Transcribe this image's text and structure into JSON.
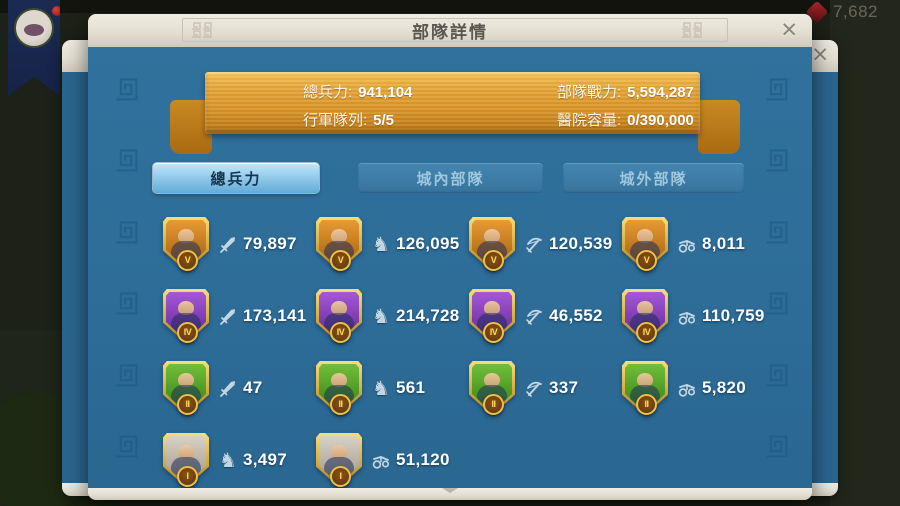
{
  "hud": {
    "gem_count": "7,682"
  },
  "back_dialog": {
    "close_label": "✕"
  },
  "dialog": {
    "title": "部隊詳情",
    "close_label": "✕"
  },
  "summary": {
    "items": [
      {
        "label": "總兵力:",
        "value": "941,104"
      },
      {
        "label": "部隊戰力:",
        "value": "5,594,287"
      },
      {
        "label": "行軍隊列:",
        "value": "5/5"
      },
      {
        "label": "醫院容量:",
        "value": "0/390,000"
      }
    ]
  },
  "tabs": [
    {
      "label": "總兵力",
      "active": true
    },
    {
      "label": "城內部隊",
      "active": false
    },
    {
      "label": "城外部隊",
      "active": false
    }
  ],
  "troops": [
    {
      "tier": "V",
      "type": "infantry",
      "icon": "sword-icon",
      "count": "79,897"
    },
    {
      "tier": "V",
      "type": "cavalry",
      "icon": "horse-icon",
      "count": "126,095"
    },
    {
      "tier": "V",
      "type": "archer",
      "icon": "crossbow-icon",
      "count": "120,539"
    },
    {
      "tier": "V",
      "type": "siege",
      "icon": "siege-icon",
      "count": "8,011"
    },
    {
      "tier": "IV",
      "type": "infantry",
      "icon": "sword-icon",
      "count": "173,141"
    },
    {
      "tier": "IV",
      "type": "cavalry",
      "icon": "horse-icon",
      "count": "214,728"
    },
    {
      "tier": "IV",
      "type": "archer",
      "icon": "crossbow-icon",
      "count": "46,552"
    },
    {
      "tier": "IV",
      "type": "siege",
      "icon": "siege-icon",
      "count": "110,759"
    },
    {
      "tier": "II",
      "type": "infantry",
      "icon": "sword-icon",
      "count": "47"
    },
    {
      "tier": "II",
      "type": "cavalry",
      "icon": "horse-icon",
      "count": "561"
    },
    {
      "tier": "II",
      "type": "archer",
      "icon": "crossbow-icon",
      "count": "337"
    },
    {
      "tier": "II",
      "type": "siege",
      "icon": "siege-icon",
      "count": "5,820"
    },
    {
      "tier": "I",
      "type": "cavalry",
      "icon": "horse-icon",
      "count": "3,497"
    },
    {
      "tier": "I",
      "type": "siege",
      "icon": "siege-icon",
      "count": "51,120"
    }
  ],
  "tier_colors": {
    "V": {
      "top": "#e89a33",
      "bottom": "#9c5a0e"
    },
    "IV": {
      "top": "#a558d8",
      "bottom": "#5e2492"
    },
    "II": {
      "top": "#72bf3a",
      "bottom": "#2f7d14"
    },
    "I": {
      "top": "#d8d2c6",
      "bottom": "#9a9284"
    }
  },
  "colors": {
    "stat_icon": "#c3d6e4",
    "panel_blue": "#2d6d98",
    "ribbon_gold": "#d89327",
    "active_tab": "#8cc6e8"
  }
}
